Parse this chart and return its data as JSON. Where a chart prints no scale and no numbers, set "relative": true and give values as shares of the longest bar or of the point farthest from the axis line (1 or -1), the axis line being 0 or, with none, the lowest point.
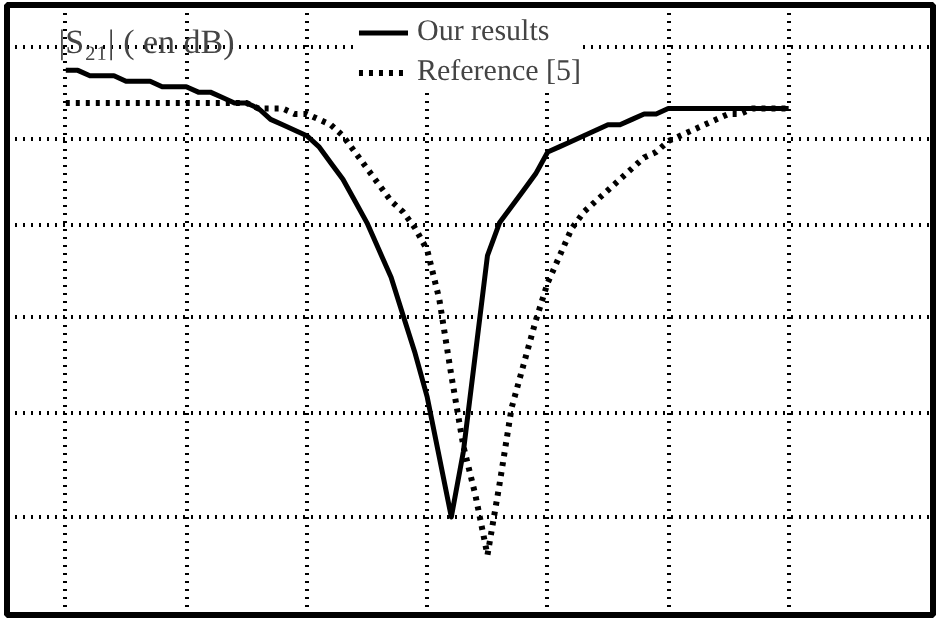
{
  "chart_data": {
    "type": "line",
    "ylabel": "|S₂₁| ( en dB)",
    "relative": true,
    "categories": [
      null,
      null,
      null,
      null,
      null,
      null,
      null,
      null,
      null,
      null,
      null,
      null,
      null,
      null,
      null,
      null,
      null,
      null,
      null,
      null,
      null,
      null,
      null,
      null,
      null,
      null,
      null,
      null,
      null,
      null,
      null,
      null,
      null,
      null,
      null,
      null,
      null,
      null,
      null,
      null,
      null,
      null,
      null,
      null,
      null,
      null,
      null,
      null,
      null,
      null,
      null,
      null,
      null,
      null,
      null,
      null,
      null,
      null,
      null,
      null,
      null
    ],
    "series": [
      {
        "name": "Our results",
        "color": "#000000",
        "line_style": "solid",
        "values": [
          1.0,
          1.0,
          0.99,
          0.99,
          0.99,
          0.98,
          0.98,
          0.98,
          0.97,
          0.97,
          0.97,
          0.96,
          0.96,
          0.95,
          0.94,
          0.94,
          0.93,
          0.91,
          0.9,
          0.89,
          0.88,
          0.86,
          0.83,
          0.8,
          0.76,
          0.72,
          0.67,
          0.62,
          0.55,
          0.48,
          0.4,
          0.29,
          0.18,
          0.3,
          0.48,
          0.66,
          0.72,
          0.75,
          0.78,
          0.81,
          0.85,
          0.86,
          0.87,
          0.88,
          0.89,
          0.9,
          0.9,
          0.91,
          0.92,
          0.92,
          0.93,
          0.93,
          0.93,
          0.93,
          0.93,
          0.93,
          0.93,
          0.93,
          0.93,
          0.93,
          0.93
        ]
      },
      {
        "name": "Reference [5]",
        "color": "#000000",
        "line_style": "dotted",
        "values": [
          0.94,
          0.94,
          0.94,
          0.94,
          0.94,
          0.94,
          0.94,
          0.94,
          0.94,
          0.94,
          0.94,
          0.94,
          0.94,
          0.94,
          0.94,
          0.94,
          0.93,
          0.93,
          0.93,
          0.92,
          0.92,
          0.91,
          0.9,
          0.88,
          0.85,
          0.82,
          0.79,
          0.76,
          0.74,
          0.71,
          0.67,
          0.58,
          0.44,
          0.31,
          0.22,
          0.11,
          0.24,
          0.38,
          0.46,
          0.54,
          0.61,
          0.66,
          0.71,
          0.74,
          0.76,
          0.78,
          0.8,
          0.82,
          0.84,
          0.85,
          0.87,
          0.88,
          0.89,
          0.9,
          0.91,
          0.92,
          0.92,
          0.93,
          0.93,
          0.93,
          0.93
        ]
      }
    ],
    "grid": true,
    "legend": "top",
    "marker": "none",
    "tick_labels": false
  }
}
